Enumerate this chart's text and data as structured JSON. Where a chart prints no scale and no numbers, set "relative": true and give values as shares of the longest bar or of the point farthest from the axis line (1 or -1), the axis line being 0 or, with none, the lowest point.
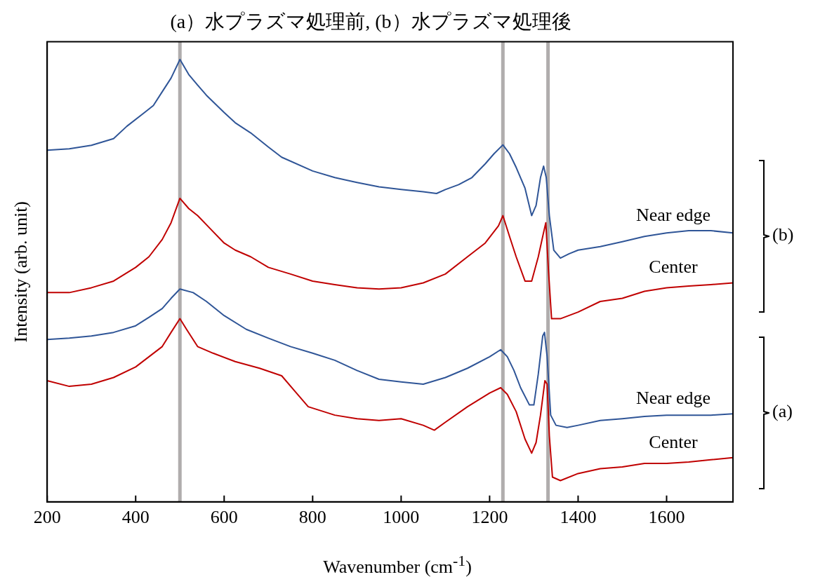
{
  "chart_data": {
    "type": "line",
    "title": "(a）水プラズマ処理前, (b）水プラズマ処理後",
    "xlabel": "Wavenumber (cm$^{-1}$)",
    "ylabel": "Intensity (arb. unit)",
    "relative": true,
    "xlim": [
      200,
      1750
    ],
    "xticks": [
      200,
      400,
      600,
      800,
      1000,
      1200,
      1400,
      1600
    ],
    "grid": false,
    "legend": false,
    "marker": "none",
    "line_style": "solid",
    "ref_lines": [
      {
        "axis": "x",
        "value": 500,
        "color": "#b0adad"
      },
      {
        "axis": "x",
        "value": 1230,
        "color": "#b0adad"
      },
      {
        "axis": "x",
        "value": 1332,
        "color": "#b0adad"
      }
    ],
    "annotations": [
      "(b)",
      "(a)"
    ],
    "series": [
      {
        "name": "Near edge",
        "color": "#2f5597",
        "x": [
          200,
          250,
          300,
          350,
          380,
          420,
          440,
          460,
          480,
          500,
          520,
          540,
          560,
          600,
          625,
          660,
          700,
          730,
          800,
          850,
          900,
          950,
          1000,
          1050,
          1080,
          1100,
          1130,
          1160,
          1190,
          1210,
          1230,
          1245,
          1260,
          1280,
          1295,
          1305,
          1315,
          1322,
          1328,
          1335,
          1345,
          1360,
          1380,
          1400,
          1450,
          1500,
          1550,
          1600,
          1650,
          1700,
          1750
        ],
        "values": [
          0.795,
          0.798,
          0.806,
          0.821,
          0.849,
          0.88,
          0.896,
          0.927,
          0.958,
          1.0,
          0.966,
          0.942,
          0.919,
          0.88,
          0.857,
          0.834,
          0.802,
          0.779,
          0.748,
          0.733,
          0.722,
          0.712,
          0.706,
          0.701,
          0.697,
          0.706,
          0.717,
          0.733,
          0.764,
          0.787,
          0.807,
          0.787,
          0.756,
          0.709,
          0.647,
          0.67,
          0.733,
          0.759,
          0.733,
          0.647,
          0.569,
          0.551,
          0.561,
          0.569,
          0.577,
          0.588,
          0.6,
          0.608,
          0.613,
          0.613,
          0.608
        ]
      },
      {
        "name": "Center",
        "color": "#c00000",
        "x": [
          200,
          250,
          300,
          350,
          400,
          430,
          460,
          480,
          500,
          520,
          540,
          570,
          600,
          625,
          660,
          700,
          750,
          800,
          850,
          900,
          950,
          1000,
          1050,
          1100,
          1150,
          1190,
          1220,
          1230,
          1245,
          1260,
          1280,
          1295,
          1310,
          1320,
          1327,
          1333,
          1340,
          1360,
          1400,
          1450,
          1500,
          1550,
          1600,
          1650,
          1700,
          1750
        ],
        "values": [
          0.473,
          0.473,
          0.484,
          0.499,
          0.53,
          0.554,
          0.593,
          0.631,
          0.686,
          0.663,
          0.647,
          0.616,
          0.585,
          0.569,
          0.554,
          0.53,
          0.515,
          0.499,
          0.491,
          0.484,
          0.481,
          0.484,
          0.495,
          0.515,
          0.554,
          0.585,
          0.624,
          0.647,
          0.6,
          0.554,
          0.499,
          0.499,
          0.554,
          0.6,
          0.631,
          0.523,
          0.414,
          0.414,
          0.429,
          0.453,
          0.46,
          0.476,
          0.484,
          0.488,
          0.491,
          0.495
        ]
      },
      {
        "name": "Near edge",
        "color": "#2f5597",
        "x": [
          200,
          250,
          300,
          350,
          400,
          430,
          460,
          480,
          500,
          530,
          560,
          600,
          650,
          700,
          750,
          800,
          850,
          900,
          950,
          1000,
          1050,
          1100,
          1150,
          1200,
          1225,
          1240,
          1255,
          1270,
          1290,
          1300,
          1310,
          1320,
          1324,
          1330,
          1338,
          1350,
          1375,
          1400,
          1450,
          1500,
          1550,
          1600,
          1650,
          1700,
          1750
        ],
        "values": [
          0.367,
          0.37,
          0.375,
          0.383,
          0.398,
          0.417,
          0.437,
          0.46,
          0.481,
          0.473,
          0.453,
          0.421,
          0.39,
          0.37,
          0.351,
          0.336,
          0.32,
          0.297,
          0.277,
          0.271,
          0.266,
          0.281,
          0.302,
          0.328,
          0.344,
          0.328,
          0.297,
          0.258,
          0.219,
          0.219,
          0.289,
          0.375,
          0.383,
          0.328,
          0.196,
          0.173,
          0.168,
          0.173,
          0.184,
          0.188,
          0.193,
          0.196,
          0.196,
          0.196,
          0.199
        ]
      },
      {
        "name": "Center",
        "color": "#c00000",
        "x": [
          200,
          250,
          300,
          350,
          400,
          430,
          460,
          480,
          500,
          515,
          540,
          575,
          625,
          680,
          730,
          760,
          790,
          850,
          900,
          950,
          1000,
          1050,
          1075,
          1100,
          1150,
          1200,
          1225,
          1240,
          1260,
          1280,
          1295,
          1305,
          1315,
          1325,
          1330,
          1335,
          1342,
          1360,
          1400,
          1450,
          1500,
          1550,
          1600,
          1650,
          1700,
          1750
        ],
        "values": [
          0.274,
          0.261,
          0.266,
          0.281,
          0.305,
          0.328,
          0.351,
          0.383,
          0.414,
          0.39,
          0.351,
          0.336,
          0.317,
          0.302,
          0.285,
          0.25,
          0.215,
          0.196,
          0.188,
          0.184,
          0.188,
          0.173,
          0.162,
          0.18,
          0.215,
          0.246,
          0.258,
          0.243,
          0.204,
          0.142,
          0.11,
          0.134,
          0.196,
          0.274,
          0.266,
          0.149,
          0.056,
          0.048,
          0.064,
          0.075,
          0.079,
          0.087,
          0.087,
          0.09,
          0.095,
          0.1
        ]
      }
    ]
  }
}
